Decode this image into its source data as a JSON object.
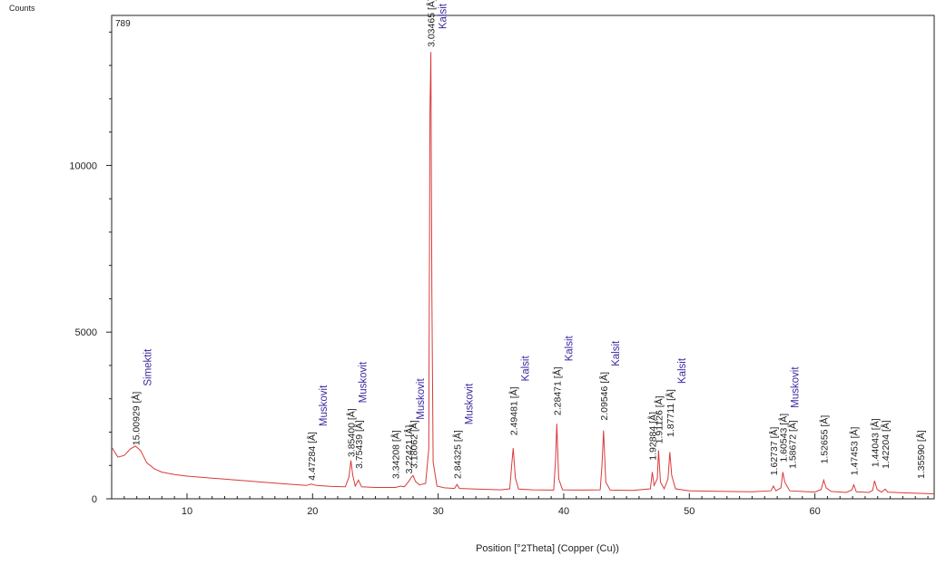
{
  "chart_data": {
    "type": "line",
    "ylabel": "Counts",
    "xlabel": "Position [°2Theta] (Copper (Cu))",
    "corner_label": "789",
    "xlim": [
      4,
      69.5
    ],
    "ylim": [
      0,
      14500
    ],
    "x_ticks": [
      10,
      20,
      30,
      40,
      50,
      60
    ],
    "y_ticks": [
      0,
      5000,
      10000
    ],
    "grid": false,
    "line_color": "#d93a3a",
    "label_color": "#3a2aa0",
    "series": [
      {
        "points": [
          [
            4.0,
            1550
          ],
          [
            4.5,
            1250
          ],
          [
            5.0,
            1300
          ],
          [
            5.5,
            1500
          ],
          [
            5.9,
            1580
          ],
          [
            6.3,
            1450
          ],
          [
            6.8,
            1080
          ],
          [
            7.4,
            900
          ],
          [
            8.0,
            800
          ],
          [
            9.0,
            730
          ],
          [
            10.0,
            680
          ],
          [
            12.0,
            620
          ],
          [
            14.0,
            560
          ],
          [
            16.0,
            500
          ],
          [
            18.0,
            440
          ],
          [
            19.5,
            400
          ],
          [
            19.9,
            440
          ],
          [
            20.3,
            400
          ],
          [
            21.5,
            370
          ],
          [
            22.6,
            360
          ],
          [
            22.9,
            650
          ],
          [
            23.05,
            1150
          ],
          [
            23.2,
            700
          ],
          [
            23.4,
            380
          ],
          [
            23.65,
            560
          ],
          [
            23.9,
            360
          ],
          [
            25.0,
            340
          ],
          [
            26.6,
            340
          ],
          [
            27.0,
            380
          ],
          [
            27.3,
            360
          ],
          [
            27.65,
            520
          ],
          [
            27.85,
            640
          ],
          [
            28.0,
            700
          ],
          [
            28.2,
            520
          ],
          [
            28.5,
            420
          ],
          [
            29.0,
            460
          ],
          [
            29.25,
            1500
          ],
          [
            29.35,
            11600
          ],
          [
            29.42,
            13400
          ],
          [
            29.5,
            6200
          ],
          [
            29.6,
            1100
          ],
          [
            29.9,
            380
          ],
          [
            30.5,
            330
          ],
          [
            31.3,
            310
          ],
          [
            31.5,
            430
          ],
          [
            31.7,
            310
          ],
          [
            33.0,
            290
          ],
          [
            35.0,
            270
          ],
          [
            35.7,
            300
          ],
          [
            35.85,
            1000
          ],
          [
            35.98,
            1520
          ],
          [
            36.15,
            620
          ],
          [
            36.4,
            290
          ],
          [
            37.5,
            270
          ],
          [
            39.2,
            260
          ],
          [
            39.35,
            1200
          ],
          [
            39.45,
            2250
          ],
          [
            39.6,
            600
          ],
          [
            39.9,
            270
          ],
          [
            41.5,
            260
          ],
          [
            42.9,
            270
          ],
          [
            43.05,
            1000
          ],
          [
            43.17,
            2050
          ],
          [
            43.35,
            500
          ],
          [
            43.7,
            260
          ],
          [
            45.5,
            250
          ],
          [
            46.9,
            300
          ],
          [
            47.05,
            800
          ],
          [
            47.2,
            400
          ],
          [
            47.45,
            600
          ],
          [
            47.55,
            1450
          ],
          [
            47.7,
            500
          ],
          [
            48.0,
            300
          ],
          [
            48.3,
            600
          ],
          [
            48.45,
            1400
          ],
          [
            48.6,
            700
          ],
          [
            48.9,
            300
          ],
          [
            50.0,
            240
          ],
          [
            53.0,
            220
          ],
          [
            55.0,
            210
          ],
          [
            56.5,
            240
          ],
          [
            56.7,
            380
          ],
          [
            56.9,
            240
          ],
          [
            57.3,
            330
          ],
          [
            57.45,
            800
          ],
          [
            57.6,
            500
          ],
          [
            58.0,
            240
          ],
          [
            60.0,
            200
          ],
          [
            60.5,
            280
          ],
          [
            60.7,
            560
          ],
          [
            60.9,
            330
          ],
          [
            61.3,
            220
          ],
          [
            62.5,
            190
          ],
          [
            62.95,
            270
          ],
          [
            63.1,
            420
          ],
          [
            63.3,
            210
          ],
          [
            64.3,
            190
          ],
          [
            64.6,
            250
          ],
          [
            64.75,
            540
          ],
          [
            64.95,
            280
          ],
          [
            65.3,
            200
          ],
          [
            65.6,
            290
          ],
          [
            65.8,
            200
          ],
          [
            67.0,
            180
          ],
          [
            69.5,
            150
          ]
        ]
      }
    ],
    "peak_labels": [
      {
        "x": 5.9,
        "y": 1600,
        "d": "15.00929 [Å]",
        "phase": "Simektit"
      },
      {
        "x": 19.9,
        "y": 550,
        "d": "4.47284 [Å]",
        "phase": "Muskovit"
      },
      {
        "x": 23.05,
        "y": 1250,
        "d": "3.85400 [Å]",
        "phase": "Muskovit"
      },
      {
        "x": 23.65,
        "y": 900,
        "d": "3.75439 [Å]",
        "phase": ""
      },
      {
        "x": 26.6,
        "y": 600,
        "d": "3.34208 [Å]",
        "phase": ""
      },
      {
        "x": 27.65,
        "y": 750,
        "d": "3.22421 [Å]",
        "phase": "Muskovit"
      },
      {
        "x": 28.05,
        "y": 900,
        "d": "3.18062 [Å]",
        "phase": ""
      },
      {
        "x": 29.42,
        "y": 13550,
        "d": "3.03465 [Å]",
        "phase": "Kalsit"
      },
      {
        "x": 31.5,
        "y": 600,
        "d": "2.84325 [Å]",
        "phase": "Muskovit"
      },
      {
        "x": 35.98,
        "y": 1900,
        "d": "2.49481 [Å]",
        "phase": "Kalsit"
      },
      {
        "x": 39.45,
        "y": 2500,
        "d": "2.28471 [Å]",
        "phase": "Kalsit"
      },
      {
        "x": 43.17,
        "y": 2350,
        "d": "2.09546 [Å]",
        "phase": "Kalsit"
      },
      {
        "x": 47.05,
        "y": 1150,
        "d": "1.92884 [Å]",
        "phase": ""
      },
      {
        "x": 47.55,
        "y": 1650,
        "d": "1.91126 [Å]",
        "phase": ""
      },
      {
        "x": 48.45,
        "y": 1850,
        "d": "1.87711 [Å]",
        "phase": "Kalsit"
      },
      {
        "x": 56.7,
        "y": 700,
        "d": "1.62737 [Å]",
        "phase": ""
      },
      {
        "x": 57.45,
        "y": 1100,
        "d": "1.60543 [Å]",
        "phase": "Muskovit"
      },
      {
        "x": 58.2,
        "y": 900,
        "d": "1.58672 [Å]",
        "phase": ""
      },
      {
        "x": 60.7,
        "y": 1050,
        "d": "1.52655 [Å]",
        "phase": ""
      },
      {
        "x": 63.1,
        "y": 700,
        "d": "1.47453 [Å]",
        "phase": ""
      },
      {
        "x": 64.75,
        "y": 950,
        "d": "1.44043 [Å]",
        "phase": ""
      },
      {
        "x": 65.6,
        "y": 900,
        "d": "1.42204 [Å]",
        "phase": ""
      },
      {
        "x": 68.4,
        "y": 600,
        "d": "1.35590 [Å]",
        "phase": ""
      }
    ]
  }
}
